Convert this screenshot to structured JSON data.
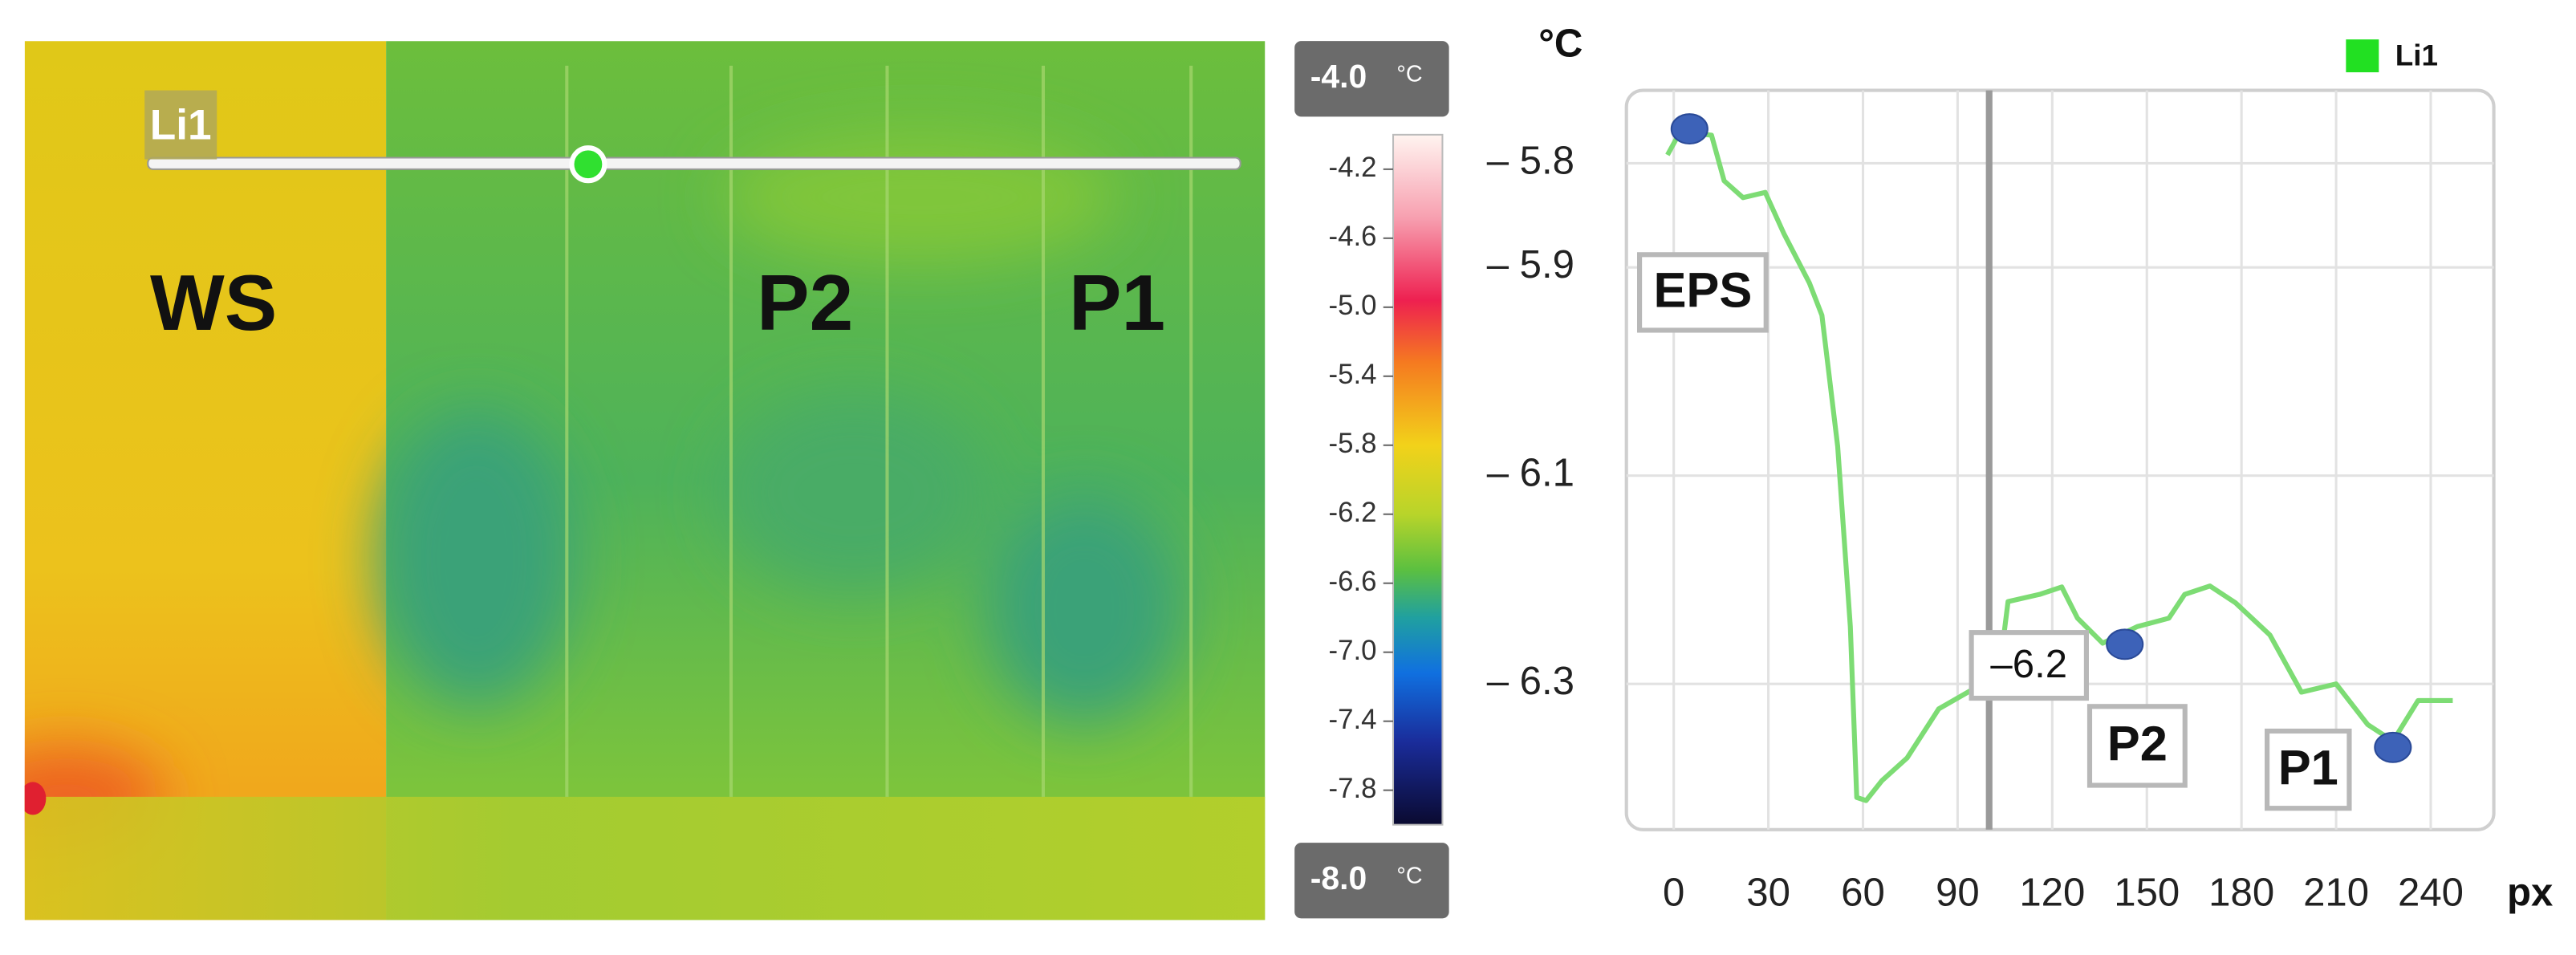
{
  "chart_data": {
    "type": "line",
    "ylabel": "°C",
    "xlabel": "px",
    "xlim": [
      -15,
      260
    ],
    "xticks": [
      0,
      30,
      60,
      90,
      120,
      150,
      180,
      210,
      240
    ],
    "ylim": [
      -6.44,
      -5.73
    ],
    "yticks": [
      {
        "value": -5.8,
        "label": "– 5.8"
      },
      {
        "value": -5.9,
        "label": "– 5.9"
      },
      {
        "value": -6.1,
        "label": "– 6.1"
      },
      {
        "value": -6.3,
        "label": "– 6.3"
      }
    ],
    "grid": true,
    "legend": "upper right",
    "series": [
      {
        "name": "Li1",
        "color": "#7ddc74",
        "x": [
          -2,
          2,
          12,
          16,
          22,
          29,
          35,
          43,
          47,
          52,
          56,
          58,
          61,
          66,
          74,
          84,
          95,
          104,
          106,
          116,
          123,
          128,
          136,
          147,
          157,
          162,
          170,
          178,
          189,
          199,
          210,
          220,
          228,
          236,
          247
        ],
        "values": [
          -5.792,
          -5.77,
          -5.773,
          -5.817,
          -5.833,
          -5.828,
          -5.868,
          -5.915,
          -5.946,
          -6.072,
          -6.245,
          -6.409,
          -6.412,
          -6.393,
          -6.371,
          -6.324,
          -6.305,
          -6.269,
          -6.221,
          -6.214,
          -6.207,
          -6.237,
          -6.261,
          -6.245,
          -6.237,
          -6.214,
          -6.206,
          -6.222,
          -6.253,
          -6.308,
          -6.3,
          -6.339,
          -6.355,
          -6.316,
          -6.316
        ]
      }
    ],
    "markers": {
      "x": [
        5,
        143,
        228
      ],
      "values": [
        -5.767,
        -6.262,
        -6.361
      ],
      "color": "#3d62b8"
    },
    "cursor_x": 100,
    "annotations": [
      "EPS",
      "–6.2",
      "P2",
      "P1"
    ]
  },
  "thermal_image": {
    "region_labels": [
      "WS",
      "P2",
      "P1"
    ],
    "colorbar": {
      "lim": [
        -8,
        -4
      ],
      "unit": "°C",
      "max": {
        "value": -4,
        "label": "-4.0"
      },
      "min": {
        "value": -8,
        "label": "-8.0"
      },
      "ticks": [
        -4.2,
        -4.6,
        {
          "value": -5,
          "label": "-5.0"
        },
        -5.4,
        -5.8,
        -6.2,
        -6.6,
        {
          "value": -7,
          "label": "-7.0"
        },
        -7.4,
        -7.8
      ]
    }
  }
}
